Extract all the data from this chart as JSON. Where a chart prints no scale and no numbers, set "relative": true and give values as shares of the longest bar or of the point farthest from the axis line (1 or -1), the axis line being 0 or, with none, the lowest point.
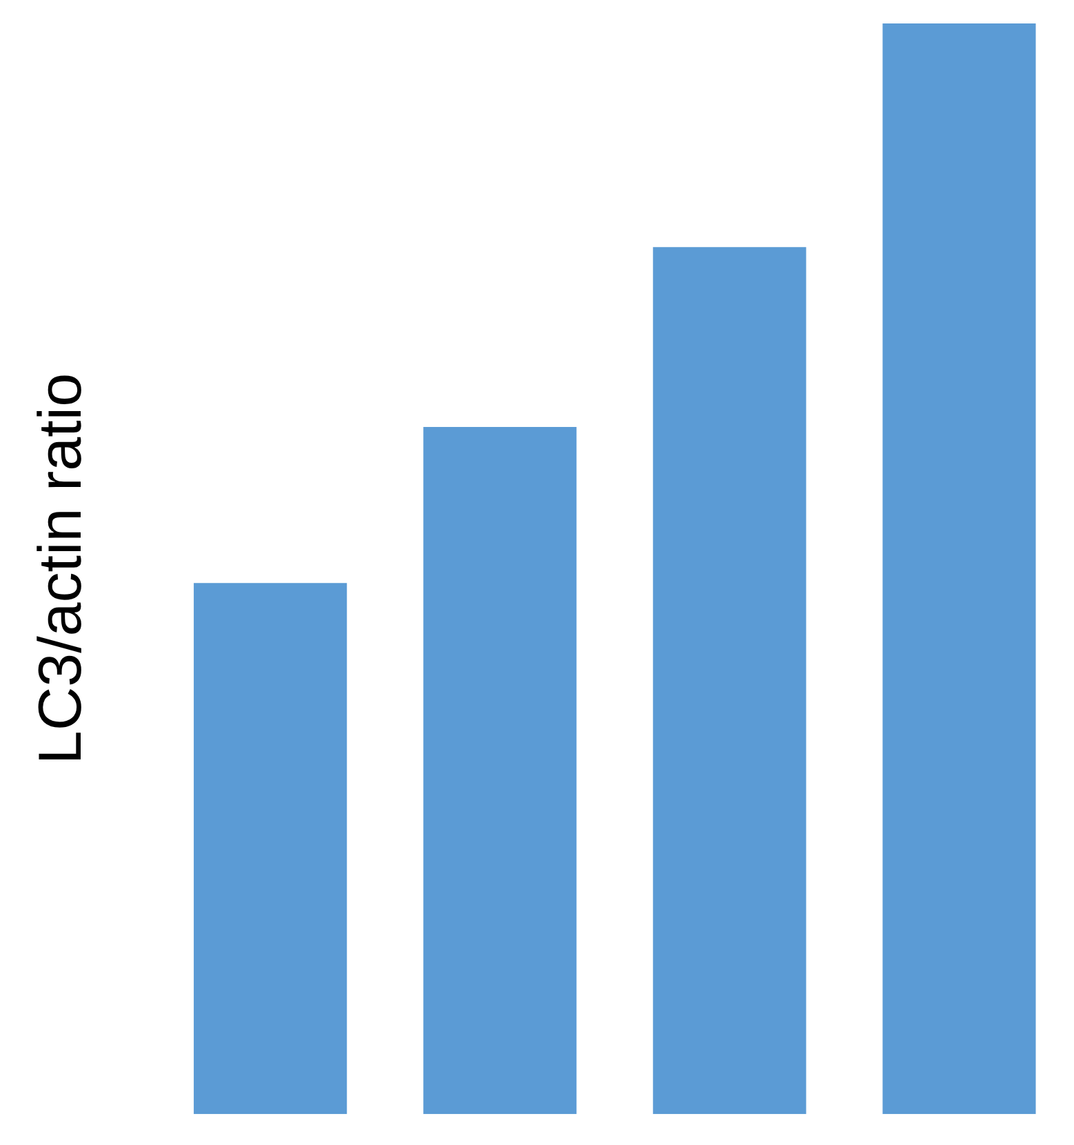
{
  "chart_data": {
    "type": "bar",
    "ylabel": "LC3/actin ratio",
    "categories": [
      null,
      null,
      null,
      null
    ],
    "values": [
      0.487,
      0.63,
      0.795,
      1
    ],
    "color": "#5b9bd5",
    "relative": true,
    "grid": false,
    "legend": false
  }
}
